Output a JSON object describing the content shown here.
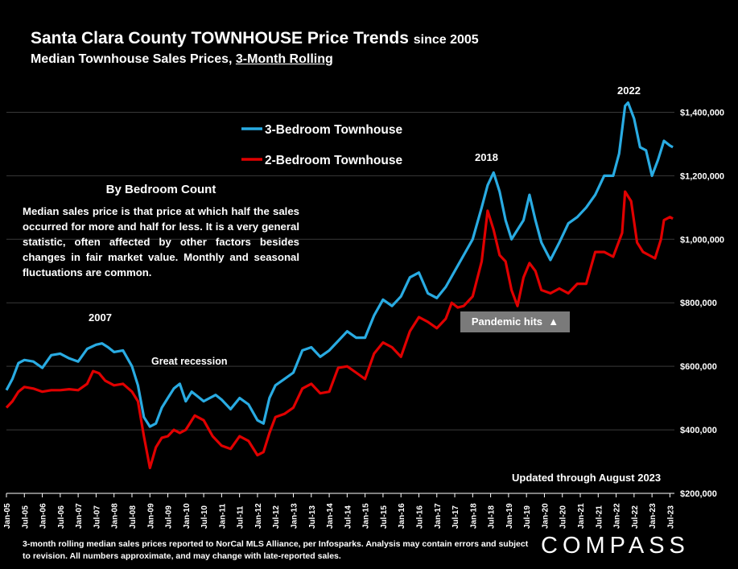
{
  "header": {
    "title_main": "Santa Clara County TOWNHOUSE Price Trends",
    "title_since": "since 2005",
    "subtitle_prefix": "Median Townhouse Sales Prices,",
    "subtitle_underlined": "3-Month Rolling"
  },
  "explanation": {
    "heading": "By Bedroom Count",
    "body": "Median sales price is that price at which half the sales occurred for more and half for less. It is a very general statistic, often affected by other factors besides changes in fair market value. Monthly and seasonal fluctuations are common."
  },
  "annotations": {
    "y2007": "2007",
    "great_recession": "Great recession",
    "y2018": "2018",
    "y2022": "2022",
    "pandemic": "Pandemic hits",
    "pandemic_arrow": "▲",
    "updated": "Updated through August 2023"
  },
  "footnote": "3-month rolling median sales prices reported to NorCal MLS Alliance, per Infosparks. Analysis may contain errors and subject to revision. All numbers approximate, and may change with late-reported sales.",
  "logo": "COMPASS",
  "colors": {
    "three_bed": "#29abe2",
    "two_bed": "#e00000",
    "axis": "#ffffff",
    "grid": "#3a3a3a"
  },
  "chart_data": {
    "type": "line",
    "title": "Santa Clara County TOWNHOUSE Price Trends since 2005",
    "subtitle": "Median Townhouse Sales Prices, 3-Month Rolling",
    "ylim": [
      200000,
      1500000
    ],
    "y_ticks": [
      200000,
      400000,
      600000,
      800000,
      1000000,
      1200000,
      1400000
    ],
    "y_tick_labels": [
      "$200,000",
      "$400,000",
      "$600,000",
      "$800,000",
      "$1,000,000",
      "$1,200,000",
      "$1,400,000"
    ],
    "x_tick_labels": [
      "Jan-05",
      "Jul-05",
      "Jan-06",
      "Jul-06",
      "Jan-07",
      "Jul-07",
      "Jan-08",
      "Jul-08",
      "Jan-09",
      "Jul-09",
      "Jan-10",
      "Jul-10",
      "Jan-11",
      "Jul-11",
      "Jan-12",
      "Jul-12",
      "Jan-13",
      "Jul-13",
      "Jan-14",
      "Jul-14",
      "Jan-15",
      "Jul-15",
      "Jan-16",
      "Jul-16",
      "Jan-17",
      "Jul-17",
      "Jan-18",
      "Jul-18",
      "Jan-19",
      "Jul-19",
      "Jan-20",
      "Jul-20",
      "Jan-21",
      "Jul-21",
      "Jan-22",
      "Jul-22",
      "Jan-23",
      "Jul-23"
    ],
    "grid": true,
    "legend_position": "top-left",
    "series": [
      {
        "name": "3-Bedroom Townhouse",
        "points": [
          [
            "Jan-05",
            525000
          ],
          [
            "Mar-05",
            560000
          ],
          [
            "May-05",
            610000
          ],
          [
            "Jul-05",
            620000
          ],
          [
            "Oct-05",
            615000
          ],
          [
            "Jan-06",
            595000
          ],
          [
            "Apr-06",
            635000
          ],
          [
            "Jul-06",
            640000
          ],
          [
            "Oct-06",
            625000
          ],
          [
            "Jan-07",
            615000
          ],
          [
            "Apr-07",
            655000
          ],
          [
            "Jul-07",
            668000
          ],
          [
            "Sep-07",
            672000
          ],
          [
            "Nov-07",
            660000
          ],
          [
            "Jan-08",
            645000
          ],
          [
            "Apr-08",
            650000
          ],
          [
            "Jul-08",
            600000
          ],
          [
            "Sep-08",
            540000
          ],
          [
            "Nov-08",
            440000
          ],
          [
            "Jan-09",
            410000
          ],
          [
            "Mar-09",
            420000
          ],
          [
            "May-09",
            470000
          ],
          [
            "Jul-09",
            500000
          ],
          [
            "Sep-09",
            530000
          ],
          [
            "Nov-09",
            545000
          ],
          [
            "Jan-10",
            490000
          ],
          [
            "Mar-10",
            520000
          ],
          [
            "May-10",
            505000
          ],
          [
            "Jul-10",
            490000
          ],
          [
            "Sep-10",
            500000
          ],
          [
            "Nov-10",
            510000
          ],
          [
            "Jan-11",
            495000
          ],
          [
            "Apr-11",
            465000
          ],
          [
            "Jul-11",
            500000
          ],
          [
            "Oct-11",
            480000
          ],
          [
            "Jan-12",
            430000
          ],
          [
            "Mar-12",
            420000
          ],
          [
            "May-12",
            500000
          ],
          [
            "Jul-12",
            540000
          ],
          [
            "Oct-12",
            560000
          ],
          [
            "Jan-13",
            580000
          ],
          [
            "Apr-13",
            650000
          ],
          [
            "Jul-13",
            660000
          ],
          [
            "Oct-13",
            630000
          ],
          [
            "Jan-14",
            650000
          ],
          [
            "Apr-14",
            680000
          ],
          [
            "Jul-14",
            710000
          ],
          [
            "Oct-14",
            690000
          ],
          [
            "Jan-15",
            690000
          ],
          [
            "Apr-15",
            760000
          ],
          [
            "Jul-15",
            810000
          ],
          [
            "Oct-15",
            790000
          ],
          [
            "Jan-16",
            820000
          ],
          [
            "Apr-16",
            880000
          ],
          [
            "Jul-16",
            895000
          ],
          [
            "Oct-16",
            830000
          ],
          [
            "Jan-17",
            815000
          ],
          [
            "Apr-17",
            850000
          ],
          [
            "Jul-17",
            900000
          ],
          [
            "Oct-17",
            950000
          ],
          [
            "Jan-18",
            1000000
          ],
          [
            "Apr-18",
            1100000
          ],
          [
            "Jun-18",
            1170000
          ],
          [
            "Aug-18",
            1210000
          ],
          [
            "Oct-18",
            1150000
          ],
          [
            "Dec-18",
            1060000
          ],
          [
            "Feb-19",
            1000000
          ],
          [
            "Apr-19",
            1030000
          ],
          [
            "Jun-19",
            1060000
          ],
          [
            "Aug-19",
            1140000
          ],
          [
            "Oct-19",
            1060000
          ],
          [
            "Dec-19",
            990000
          ],
          [
            "Mar-20",
            935000
          ],
          [
            "Jun-20",
            990000
          ],
          [
            "Sep-20",
            1050000
          ],
          [
            "Dec-20",
            1070000
          ],
          [
            "Mar-21",
            1100000
          ],
          [
            "Jun-21",
            1140000
          ],
          [
            "Sep-21",
            1200000
          ],
          [
            "Dec-21",
            1200000
          ],
          [
            "Feb-22",
            1270000
          ],
          [
            "Apr-22",
            1420000
          ],
          [
            "May-22",
            1430000
          ],
          [
            "Jul-22",
            1380000
          ],
          [
            "Sep-22",
            1290000
          ],
          [
            "Nov-22",
            1280000
          ],
          [
            "Jan-23",
            1200000
          ],
          [
            "Mar-23",
            1250000
          ],
          [
            "May-23",
            1310000
          ],
          [
            "Jul-23",
            1295000
          ],
          [
            "Aug-23",
            1290000
          ]
        ]
      },
      {
        "name": "2-Bedroom Townhouse",
        "points": [
          [
            "Jan-05",
            470000
          ],
          [
            "Mar-05",
            490000
          ],
          [
            "May-05",
            520000
          ],
          [
            "Jul-05",
            535000
          ],
          [
            "Oct-05",
            530000
          ],
          [
            "Jan-06",
            520000
          ],
          [
            "Apr-06",
            525000
          ],
          [
            "Jul-06",
            525000
          ],
          [
            "Oct-06",
            528000
          ],
          [
            "Jan-07",
            525000
          ],
          [
            "Apr-07",
            545000
          ],
          [
            "Jun-07",
            585000
          ],
          [
            "Aug-07",
            578000
          ],
          [
            "Oct-07",
            555000
          ],
          [
            "Jan-08",
            540000
          ],
          [
            "Apr-08",
            545000
          ],
          [
            "Jul-08",
            520000
          ],
          [
            "Sep-08",
            490000
          ],
          [
            "Nov-08",
            380000
          ],
          [
            "Jan-09",
            280000
          ],
          [
            "Mar-09",
            345000
          ],
          [
            "May-09",
            375000
          ],
          [
            "Jul-09",
            380000
          ],
          [
            "Sep-09",
            400000
          ],
          [
            "Nov-09",
            390000
          ],
          [
            "Jan-10",
            400000
          ],
          [
            "Apr-10",
            445000
          ],
          [
            "Jul-10",
            430000
          ],
          [
            "Oct-10",
            380000
          ],
          [
            "Jan-11",
            350000
          ],
          [
            "Apr-11",
            340000
          ],
          [
            "Jul-11",
            380000
          ],
          [
            "Oct-11",
            365000
          ],
          [
            "Jan-12",
            320000
          ],
          [
            "Mar-12",
            330000
          ],
          [
            "May-12",
            390000
          ],
          [
            "Jul-12",
            440000
          ],
          [
            "Oct-12",
            450000
          ],
          [
            "Jan-13",
            470000
          ],
          [
            "Apr-13",
            530000
          ],
          [
            "Jul-13",
            545000
          ],
          [
            "Oct-13",
            515000
          ],
          [
            "Jan-14",
            520000
          ],
          [
            "Apr-14",
            595000
          ],
          [
            "Jul-14",
            600000
          ],
          [
            "Oct-14",
            580000
          ],
          [
            "Jan-15",
            560000
          ],
          [
            "Apr-15",
            640000
          ],
          [
            "Jul-15",
            675000
          ],
          [
            "Oct-15",
            660000
          ],
          [
            "Jan-16",
            630000
          ],
          [
            "Apr-16",
            710000
          ],
          [
            "Jul-16",
            755000
          ],
          [
            "Oct-16",
            740000
          ],
          [
            "Jan-17",
            720000
          ],
          [
            "Apr-17",
            750000
          ],
          [
            "Jun-17",
            800000
          ],
          [
            "Aug-17",
            785000
          ],
          [
            "Oct-17",
            790000
          ],
          [
            "Jan-18",
            820000
          ],
          [
            "Apr-18",
            930000
          ],
          [
            "Jun-18",
            1090000
          ],
          [
            "Aug-18",
            1030000
          ],
          [
            "Oct-18",
            950000
          ],
          [
            "Dec-18",
            930000
          ],
          [
            "Feb-19",
            840000
          ],
          [
            "Apr-19",
            790000
          ],
          [
            "Jun-19",
            880000
          ],
          [
            "Aug-19",
            925000
          ],
          [
            "Oct-19",
            900000
          ],
          [
            "Dec-19",
            840000
          ],
          [
            "Mar-20",
            830000
          ],
          [
            "Jun-20",
            845000
          ],
          [
            "Sep-20",
            830000
          ],
          [
            "Dec-20",
            860000
          ],
          [
            "Mar-21",
            860000
          ],
          [
            "Jun-21",
            960000
          ],
          [
            "Sep-21",
            960000
          ],
          [
            "Dec-21",
            945000
          ],
          [
            "Mar-22",
            1020000
          ],
          [
            "Apr-22",
            1150000
          ],
          [
            "Jun-22",
            1120000
          ],
          [
            "Aug-22",
            990000
          ],
          [
            "Oct-22",
            960000
          ],
          [
            "Dec-22",
            950000
          ],
          [
            "Feb-23",
            940000
          ],
          [
            "Apr-23",
            1000000
          ],
          [
            "May-23",
            1060000
          ],
          [
            "Jul-23",
            1070000
          ],
          [
            "Aug-23",
            1065000
          ]
        ]
      }
    ]
  }
}
